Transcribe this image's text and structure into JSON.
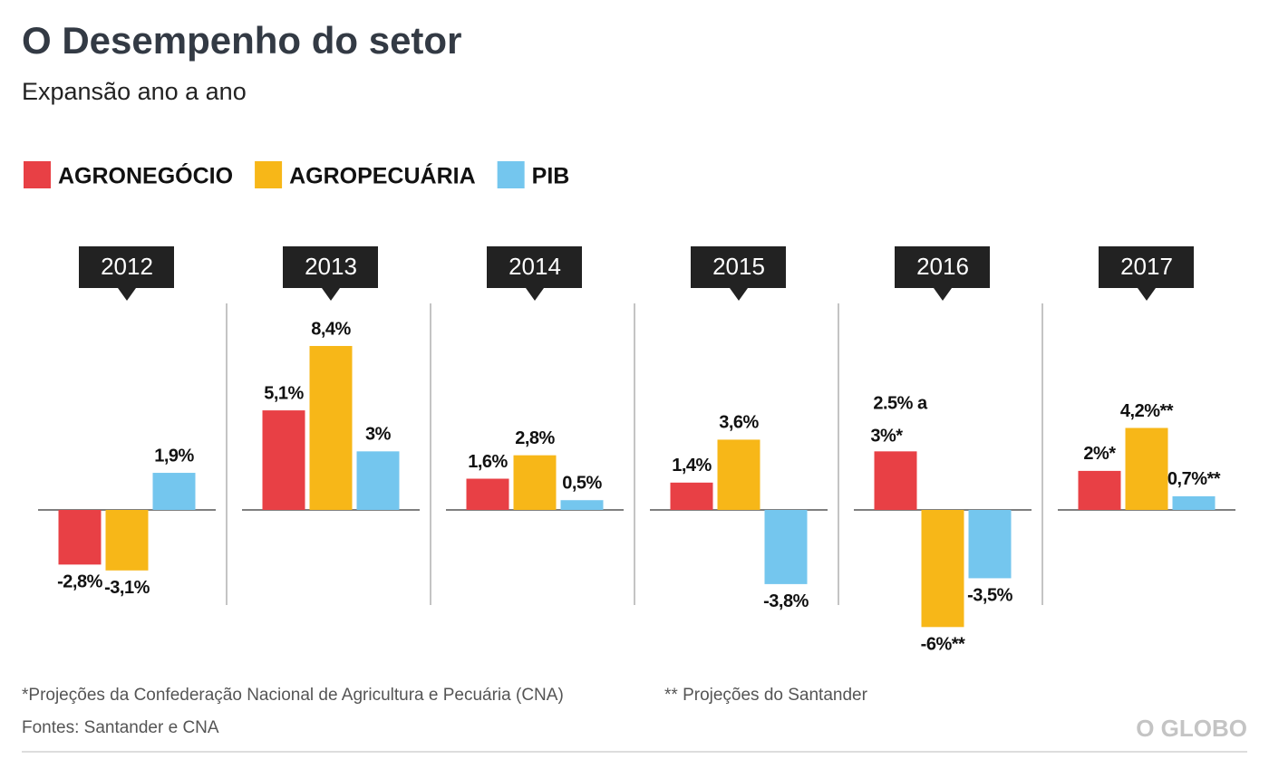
{
  "chart_data": {
    "type": "bar",
    "title": "O Desempenho do setor",
    "subtitle": "Expansão ano a ano",
    "categories": [
      "2012",
      "2013",
      "2014",
      "2015",
      "2016",
      "2017"
    ],
    "series": [
      {
        "name": "AGRONEGÓCIO",
        "color": "#e84045",
        "values": [
          -2.8,
          5.1,
          1.6,
          1.4,
          3,
          2
        ],
        "value_labels": [
          "-2,8%",
          "5,1%",
          "1,6%",
          "1,4%",
          "2.5% a 3%*",
          "2%*"
        ]
      },
      {
        "name": "AGROPECUÁRIA",
        "color": "#f7b718",
        "values": [
          -3.1,
          8.4,
          2.8,
          3.6,
          -6,
          4.2
        ],
        "value_labels": [
          "-3,1%",
          "8,4%",
          "2,8%",
          "3,6%",
          "-6%**",
          "4,2%**"
        ]
      },
      {
        "name": "PIB",
        "color": "#74c6ee",
        "values": [
          1.9,
          3,
          0.5,
          -3.8,
          -3.5,
          0.7
        ],
        "value_labels": [
          "1,9%",
          "3%",
          "0,5%",
          "-3,8%",
          "-3,5%",
          "0,7%**"
        ]
      }
    ],
    "footnotes": [
      "*Projeções da Confederação Nacional de Agricultura e Pecuária (CNA)",
      "** Projeções do Santander"
    ],
    "source": "Fontes: Santander e CNA",
    "logo": "O GLOBO"
  }
}
